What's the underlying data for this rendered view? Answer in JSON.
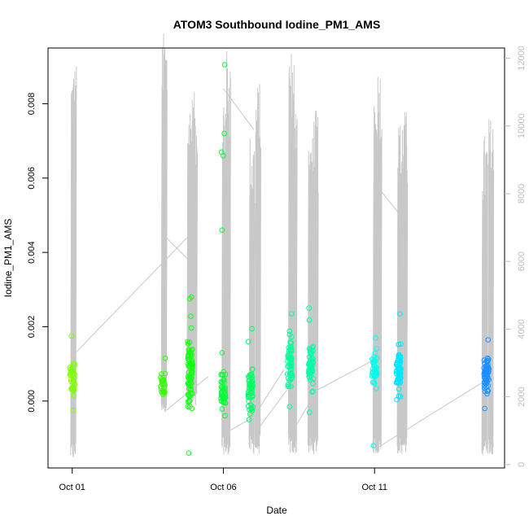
{
  "chart_data": {
    "type": "scatter",
    "title": "ATOM3 Southbound Iodine_PM1_AMS",
    "xlabel": "Date",
    "ylabel": "Iodine_PM1_AMS",
    "x_axis": {
      "type": "date",
      "ticks": [
        "Oct 01",
        "Oct 06",
        "Oct 11"
      ],
      "range_days": [
        -0.8,
        14.3
      ]
    },
    "y_left": {
      "range": [
        -0.0018,
        0.0095
      ],
      "ticks": [
        "0.000",
        "0.002",
        "0.004",
        "0.006",
        "0.008"
      ],
      "tick_values": [
        0,
        0.002,
        0.004,
        0.006,
        0.008
      ]
    },
    "y_right": {
      "range": [
        -100,
        12300
      ],
      "ticks": [
        "0",
        "2000",
        "4000",
        "6000",
        "8000",
        "10000",
        "12000"
      ],
      "tick_values": [
        0,
        2000,
        4000,
        6000,
        8000,
        10000,
        12000
      ],
      "color": "#bdbdbd"
    },
    "grid": false,
    "legend": "none",
    "point_style": "open-circle",
    "color_scale": "rainbow by time (yellow-green to blue)",
    "clusters": [
      {
        "day": 0.0,
        "color": "#7FFF00",
        "mean": 0.0006,
        "sd": 0.00045,
        "n": 35,
        "outliers": [
          0.00175,
          -0.00025
        ]
      },
      {
        "day": 3.0,
        "color": "#33FF00",
        "mean": 0.0004,
        "sd": 0.0003,
        "n": 25,
        "outliers": [
          0.00115
        ]
      },
      {
        "day": 3.9,
        "color": "#11FF11",
        "mean": 0.0008,
        "sd": 0.00065,
        "n": 80,
        "outliers": [
          0.0028,
          0.00275,
          -0.0014
        ]
      },
      {
        "day": 5.0,
        "color": "#00FF33",
        "mean": 0.0003,
        "sd": 0.0004,
        "n": 45,
        "outliers": [
          0.00905,
          0.0072,
          0.0067,
          0.0066,
          0.0046,
          0.0013
        ]
      },
      {
        "day": 5.9,
        "color": "#00FF66",
        "mean": 0.0003,
        "sd": 0.00045,
        "n": 55,
        "outliers": [
          0.0016,
          0.00195,
          -0.0005
        ]
      },
      {
        "day": 7.2,
        "color": "#00FF99",
        "mean": 0.001,
        "sd": 0.00055,
        "n": 55,
        "outliers": [
          0.00235,
          -0.00015
        ]
      },
      {
        "day": 7.9,
        "color": "#00FFAA",
        "mean": 0.001,
        "sd": 0.0006,
        "n": 55,
        "outliers": [
          0.0025,
          -0.0003
        ]
      },
      {
        "day": 10.0,
        "color": "#00FFEE",
        "mean": 0.0008,
        "sd": 0.0004,
        "n": 45,
        "outliers": [
          0.0017,
          -0.0012
        ]
      },
      {
        "day": 10.8,
        "color": "#00E5FF",
        "mean": 0.0008,
        "sd": 0.0005,
        "n": 60,
        "outliers": [
          0.00235
        ]
      },
      {
        "day": 13.7,
        "color": "#1E90FF",
        "mean": 0.0007,
        "sd": 0.0004,
        "n": 70,
        "outliers": [
          0.00165,
          -0.0002
        ]
      }
    ],
    "right_series": {
      "name": "",
      "color": "#c8c8c8",
      "spikes": [
        {
          "day": 0.0,
          "max": 12000,
          "min": 100
        },
        {
          "day": 3.0,
          "max": 12800,
          "min": 1500
        },
        {
          "day": 3.85,
          "max": 10800,
          "min": 1600
        },
        {
          "day": 4.0,
          "max": 11000,
          "min": 1600
        },
        {
          "day": 5.0,
          "max": 11100,
          "min": 300
        },
        {
          "day": 5.1,
          "max": 12300,
          "min": 300
        },
        {
          "day": 5.9,
          "max": 9800,
          "min": 300
        },
        {
          "day": 6.1,
          "max": 11300,
          "min": 300
        },
        {
          "day": 7.2,
          "max": 12400,
          "min": 300
        },
        {
          "day": 7.3,
          "max": 11400,
          "min": 300
        },
        {
          "day": 7.85,
          "max": 9700,
          "min": 300
        },
        {
          "day": 8.0,
          "max": 10500,
          "min": 300
        },
        {
          "day": 10.0,
          "max": 10600,
          "min": 300
        },
        {
          "day": 10.1,
          "max": 11900,
          "min": 300
        },
        {
          "day": 10.8,
          "max": 10200,
          "min": 300
        },
        {
          "day": 10.95,
          "max": 10500,
          "min": 300
        },
        {
          "day": 13.6,
          "max": 9800,
          "min": 300
        },
        {
          "day": 13.8,
          "max": 10300,
          "min": 300
        }
      ],
      "connectors": [
        [
          [
            0.0,
            3200
          ],
          [
            3.8,
            6700
          ]
        ],
        [
          [
            3.0,
            6800
          ],
          [
            3.9,
            6000
          ]
        ],
        [
          [
            3.1,
            1600
          ],
          [
            4.5,
            2600
          ]
        ],
        [
          [
            5.0,
            11100
          ],
          [
            6.0,
            9900
          ]
        ],
        [
          [
            5.2,
            1000
          ],
          [
            6.0,
            1400
          ],
          [
            7.0,
            2800
          ]
        ],
        [
          [
            6.1,
            1000
          ],
          [
            7.1,
            2200
          ]
        ],
        [
          [
            7.3,
            1000
          ],
          [
            8.1,
            2200
          ],
          [
            10.0,
            3100
          ]
        ],
        [
          [
            10.1,
            8200
          ],
          [
            11.0,
            7200
          ]
        ],
        [
          [
            10.1,
            500
          ],
          [
            11.0,
            1000
          ],
          [
            13.7,
            2500
          ]
        ]
      ]
    }
  }
}
